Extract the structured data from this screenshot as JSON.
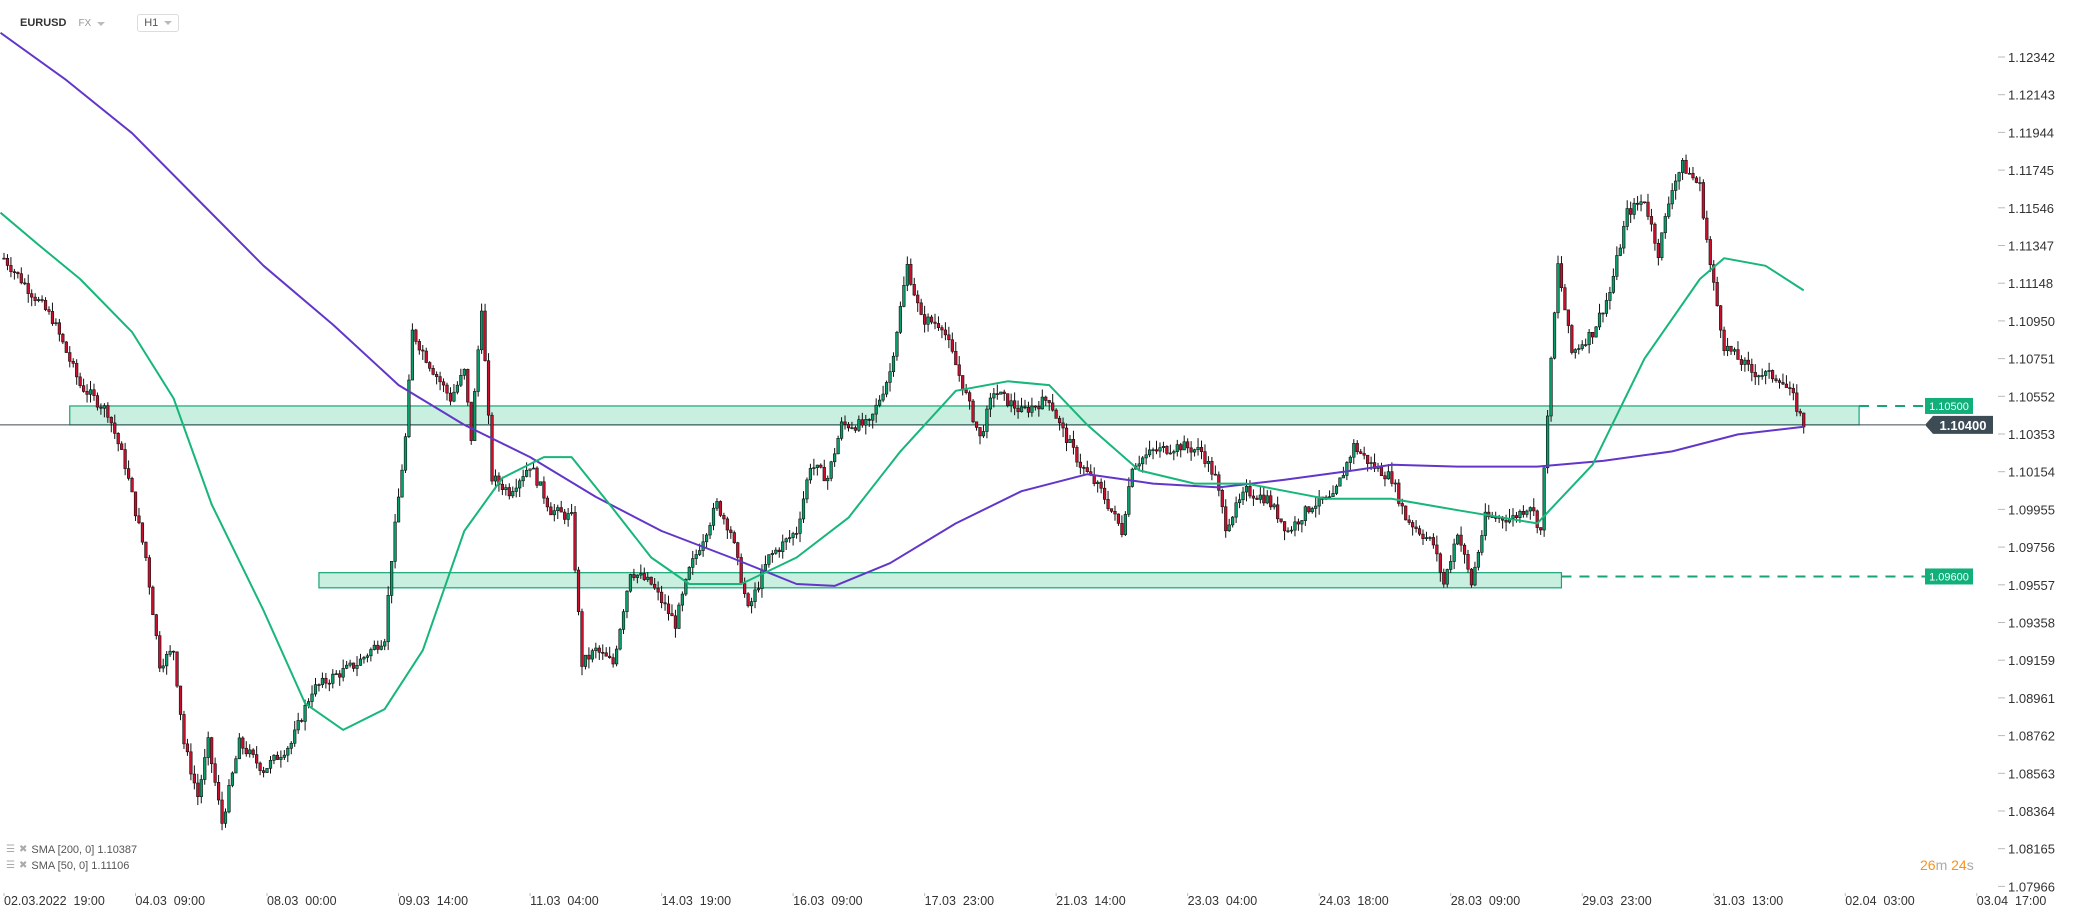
{
  "header": {
    "symbol": "EURUSD",
    "market": "FX",
    "timeframe": "H1"
  },
  "timer": {
    "minutes": "26",
    "m": "m",
    "seconds": "24",
    "s": "s"
  },
  "legend": [
    {
      "label": "SMA [200, 0] 1.10387"
    },
    {
      "label": "SMA [50, 0] 1.11106"
    }
  ],
  "colors": {
    "up": "#089e6a",
    "down": "#c8102e",
    "sma200": "#6236c9",
    "sma50": "#17b67a",
    "zone_fill": "#c9efe0",
    "zone_border": "#17a574",
    "tag": "#11b07a",
    "current": "#3d4b55",
    "timer": "#f7931a"
  },
  "chart_data": {
    "type": "candlestick",
    "symbol": "EURUSD",
    "timeframe": "H1",
    "y_ticks": [
      "1.12342",
      "1.12143",
      "1.11944",
      "1.11745",
      "1.11546",
      "1.11347",
      "1.11148",
      "1.10950",
      "1.10751",
      "1.10552",
      "1.10353",
      "1.10154",
      "1.09955",
      "1.09756",
      "1.09557",
      "1.09358",
      "1.09159",
      "1.08961",
      "1.08762",
      "1.08563",
      "1.08364",
      "1.08165",
      "1.07966"
    ],
    "x_ticks": [
      "02.03.2022  19:00",
      "04.03  09:00",
      "08.03  00:00",
      "09.03  14:00",
      "11.03  04:00",
      "14.03  19:00",
      "16.03  09:00",
      "17.03  23:00",
      "21.03  14:00",
      "23.03  04:00",
      "24.03  18:00",
      "28.03  09:00",
      "29.03  23:00",
      "31.03  13:00",
      "02.04  03:00",
      "03.04  17:00"
    ],
    "x_tick_bars_step": 38,
    "price_path_bar_close": [
      [
        0,
        1.1128
      ],
      [
        14,
        1.1096
      ],
      [
        22,
        1.1061
      ],
      [
        30,
        1.1047
      ],
      [
        35,
        1.1019
      ],
      [
        41,
        1.097
      ],
      [
        45,
        1.0914
      ],
      [
        49,
        1.0921
      ],
      [
        52,
        1.0872
      ],
      [
        56,
        1.0844
      ],
      [
        59,
        1.0872
      ],
      [
        63,
        1.083
      ],
      [
        68,
        1.0872
      ],
      [
        75,
        1.0858
      ],
      [
        83,
        1.0872
      ],
      [
        89,
        1.09
      ],
      [
        95,
        1.0907
      ],
      [
        102,
        1.0914
      ],
      [
        110,
        1.0928
      ],
      [
        112,
        1.097
      ],
      [
        116,
        1.1033
      ],
      [
        118,
        1.1089
      ],
      [
        123,
        1.1072
      ],
      [
        129,
        1.1054
      ],
      [
        133,
        1.1068
      ],
      [
        135,
        1.1033
      ],
      [
        138,
        1.1103
      ],
      [
        141,
        1.1012
      ],
      [
        146,
        1.1005
      ],
      [
        152,
        1.1019
      ],
      [
        158,
        1.0995
      ],
      [
        164,
        1.0991
      ],
      [
        167,
        1.0914
      ],
      [
        171,
        1.0921
      ],
      [
        176,
        1.0914
      ],
      [
        181,
        1.0963
      ],
      [
        187,
        1.0956
      ],
      [
        194,
        1.0935
      ],
      [
        198,
        1.0963
      ],
      [
        206,
        1.0998
      ],
      [
        210,
        1.0984
      ],
      [
        215,
        1.0942
      ],
      [
        221,
        1.097
      ],
      [
        229,
        1.0984
      ],
      [
        233,
        1.1019
      ],
      [
        238,
        1.1012
      ],
      [
        242,
        1.104
      ],
      [
        250,
        1.104
      ],
      [
        256,
        1.1068
      ],
      [
        261,
        1.1124
      ],
      [
        265,
        1.1096
      ],
      [
        271,
        1.1093
      ],
      [
        277,
        1.1061
      ],
      [
        282,
        1.1033
      ],
      [
        286,
        1.1058
      ],
      [
        294,
        1.1047
      ],
      [
        302,
        1.1054
      ],
      [
        305,
        1.104
      ],
      [
        311,
        1.1019
      ],
      [
        317,
        1.1005
      ],
      [
        323,
        1.0984
      ],
      [
        326,
        1.1019
      ],
      [
        332,
        1.1026
      ],
      [
        340,
        1.1029
      ],
      [
        346,
        1.1026
      ],
      [
        350,
        1.1012
      ],
      [
        353,
        1.0987
      ],
      [
        359,
        1.1005
      ],
      [
        365,
        1.1001
      ],
      [
        371,
        1.0984
      ],
      [
        378,
        1.0998
      ],
      [
        384,
        1.1001
      ],
      [
        390,
        1.1029
      ],
      [
        395,
        1.1019
      ],
      [
        401,
        1.1012
      ],
      [
        405,
        1.0991
      ],
      [
        413,
        1.0977
      ],
      [
        416,
        1.0956
      ],
      [
        420,
        1.0984
      ],
      [
        424,
        1.0956
      ],
      [
        428,
        1.0991
      ],
      [
        436,
        1.0991
      ],
      [
        441,
        1.0998
      ],
      [
        444,
        1.0984
      ],
      [
        446,
        1.1047
      ],
      [
        449,
        1.1124
      ],
      [
        453,
        1.1078
      ],
      [
        459,
        1.1089
      ],
      [
        464,
        1.111
      ],
      [
        469,
        1.1152
      ],
      [
        474,
        1.1159
      ],
      [
        478,
        1.1131
      ],
      [
        482,
        1.1166
      ],
      [
        485,
        1.1177
      ],
      [
        490,
        1.1166
      ],
      [
        493,
        1.1124
      ],
      [
        497,
        1.1082
      ],
      [
        501,
        1.1075
      ],
      [
        505,
        1.1068
      ],
      [
        513,
        1.1065
      ],
      [
        517,
        1.1054
      ],
      [
        520,
        1.104
      ]
    ],
    "series": [
      {
        "name": "SMA [200, 0]",
        "last": 1.10387,
        "points": [
          [
            -1,
            1.1247
          ],
          [
            18,
            1.1222
          ],
          [
            37,
            1.1194
          ],
          [
            56,
            1.1159
          ],
          [
            75,
            1.1124
          ],
          [
            95,
            1.1093
          ],
          [
            114,
            1.1061
          ],
          [
            133,
            1.104
          ],
          [
            152,
            1.1023
          ],
          [
            171,
            1.1002
          ],
          [
            190,
            1.0984
          ],
          [
            210,
            1.097
          ],
          [
            229,
            1.0956
          ],
          [
            240,
            1.0955
          ],
          [
            256,
            1.0967
          ],
          [
            275,
            1.0988
          ],
          [
            294,
            1.1005
          ],
          [
            313,
            1.1014
          ],
          [
            332,
            1.1009
          ],
          [
            351,
            1.1007
          ],
          [
            370,
            1.1011
          ],
          [
            390,
            1.1016
          ],
          [
            401,
            1.1019
          ],
          [
            420,
            1.1018
          ],
          [
            443,
            1.1018
          ],
          [
            462,
            1.1021
          ],
          [
            482,
            1.1026
          ],
          [
            501,
            1.1035
          ],
          [
            520,
            1.1039
          ]
        ]
      },
      {
        "name": "SMA [50, 0]",
        "last": 1.11106,
        "points": [
          [
            -1,
            1.1152
          ],
          [
            10,
            1.1135
          ],
          [
            22,
            1.1117
          ],
          [
            37,
            1.1089
          ],
          [
            49,
            1.1054
          ],
          [
            60,
            1.0998
          ],
          [
            75,
            1.0942
          ],
          [
            87,
            1.0893
          ],
          [
            98,
            1.0879
          ],
          [
            110,
            1.089
          ],
          [
            121,
            1.0921
          ],
          [
            133,
            1.0984
          ],
          [
            144,
            1.1012
          ],
          [
            156,
            1.1023
          ],
          [
            164,
            1.1023
          ],
          [
            175,
            1.0998
          ],
          [
            187,
            1.097
          ],
          [
            198,
            1.0956
          ],
          [
            213,
            1.0956
          ],
          [
            229,
            1.097
          ],
          [
            244,
            1.0991
          ],
          [
            259,
            1.1026
          ],
          [
            275,
            1.1058
          ],
          [
            290,
            1.1063
          ],
          [
            302,
            1.1061
          ],
          [
            313,
            1.104
          ],
          [
            328,
            1.1016
          ],
          [
            344,
            1.1009
          ],
          [
            359,
            1.1009
          ],
          [
            382,
            1.1001
          ],
          [
            401,
            1.1001
          ],
          [
            420,
            1.0995
          ],
          [
            443,
            1.0988
          ],
          [
            459,
            1.1019
          ],
          [
            474,
            1.1075
          ],
          [
            490,
            1.1117
          ],
          [
            497,
            1.1128
          ],
          [
            509,
            1.1124
          ],
          [
            520,
            1.1111
          ]
        ]
      }
    ],
    "zones": [
      {
        "top": 1.105,
        "bottom": 1.104,
        "from_bar": 19,
        "to_bar": 536,
        "label": "1.10500"
      },
      {
        "top": 1.0962,
        "bottom": 1.0954,
        "from_bar": 91,
        "to_bar": 450,
        "label": "1.09600"
      }
    ],
    "current_price": "1.10400",
    "ylim": [
      1.07966,
      1.12342
    ]
  }
}
